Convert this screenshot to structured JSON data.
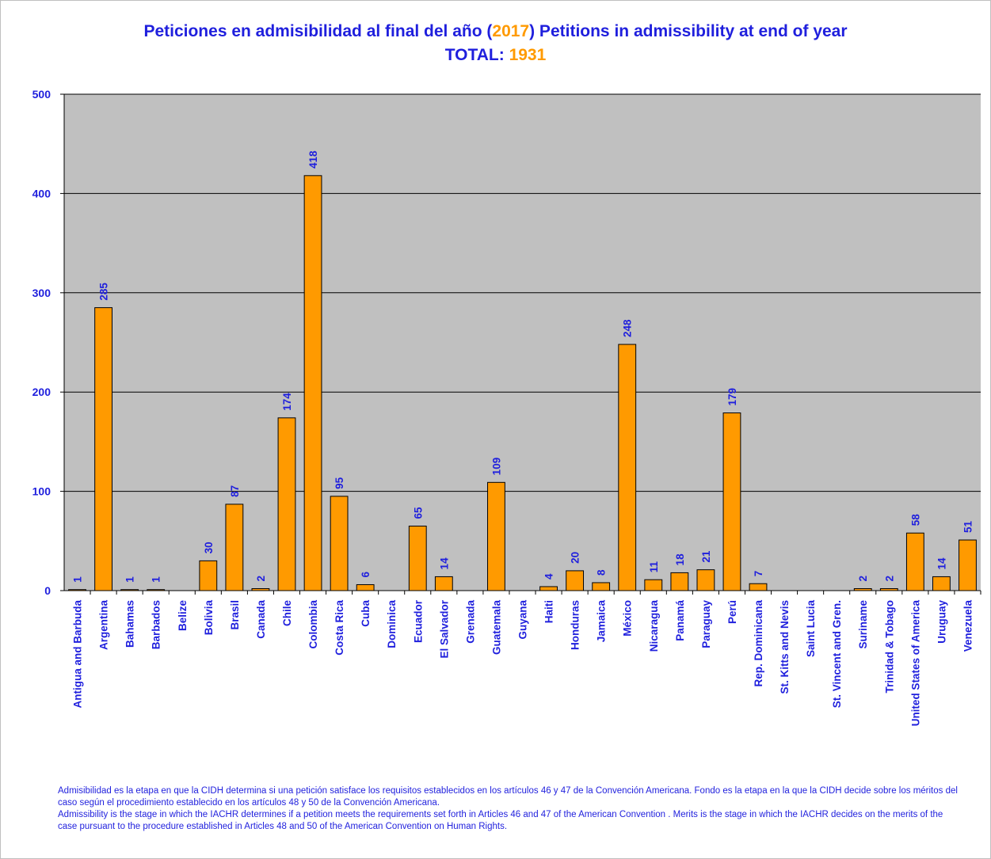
{
  "title": {
    "prefix": "Peticiones en admisibilidad al final del año (",
    "year": "2017",
    "suffix": ") Petitions in admissibility at end of year",
    "total_label": "TOTAL:",
    "total_value": "1931"
  },
  "colors": {
    "bar": "#ff9a00",
    "plot_bg": "#c0c0c0",
    "text": "#1f1fdd",
    "accent": "#ff9a00"
  },
  "chart_data": {
    "type": "bar",
    "categories": [
      "Antigua and Barbuda",
      "Argentina",
      "Bahamas",
      "Barbados",
      "Belize",
      "Bolivia",
      "Brasil",
      "Canada",
      "Chile",
      "Colombia",
      "Costa Rica",
      "Cuba",
      "Dominica",
      "Ecuador",
      "El Salvador",
      "Grenada",
      "Guatemala",
      "Guyana",
      "Haiti",
      "Honduras",
      "Jamaica",
      "México",
      "Nicaragua",
      "Panamá",
      "Paraguay",
      "Perú",
      "Rep. Dominicana",
      "St. Kitts and Nevis",
      "Saint Lucia",
      "St. Vincent and Gren.",
      "Suriname",
      "Trinidad & Tobago",
      "United States of America",
      "Uruguay",
      "Venezuela"
    ],
    "values": [
      1,
      285,
      1,
      1,
      null,
      30,
      87,
      2,
      174,
      418,
      95,
      6,
      null,
      65,
      14,
      null,
      109,
      null,
      4,
      20,
      8,
      248,
      11,
      18,
      21,
      179,
      7,
      null,
      null,
      null,
      2,
      2,
      58,
      14,
      51
    ],
    "ylim": [
      0,
      500
    ],
    "yticks": [
      0,
      100,
      200,
      300,
      400,
      500
    ],
    "grid": true,
    "legend": "none"
  },
  "notes": {
    "es": "Admisibilidad es la etapa en que la CIDH determina si una petición satisface los requisitos establecidos en los artículos 46 y 47 de la Convención Americana.  Fondo es la etapa en la que la CIDH decide sobre los méritos del caso según el procedimiento establecido en los artículos 48 y 50 de la Convención Americana.",
    "en": "Admissibility is the stage in which the IACHR determines  if a petition meets the requirements set forth in Articles 46 and 47 of the American Convention . Merits is the stage in which the IACHR decides on the  merits of the case pursuant to the procedure established in Articles 48 and 50 of the American Convention on Human Rights."
  }
}
